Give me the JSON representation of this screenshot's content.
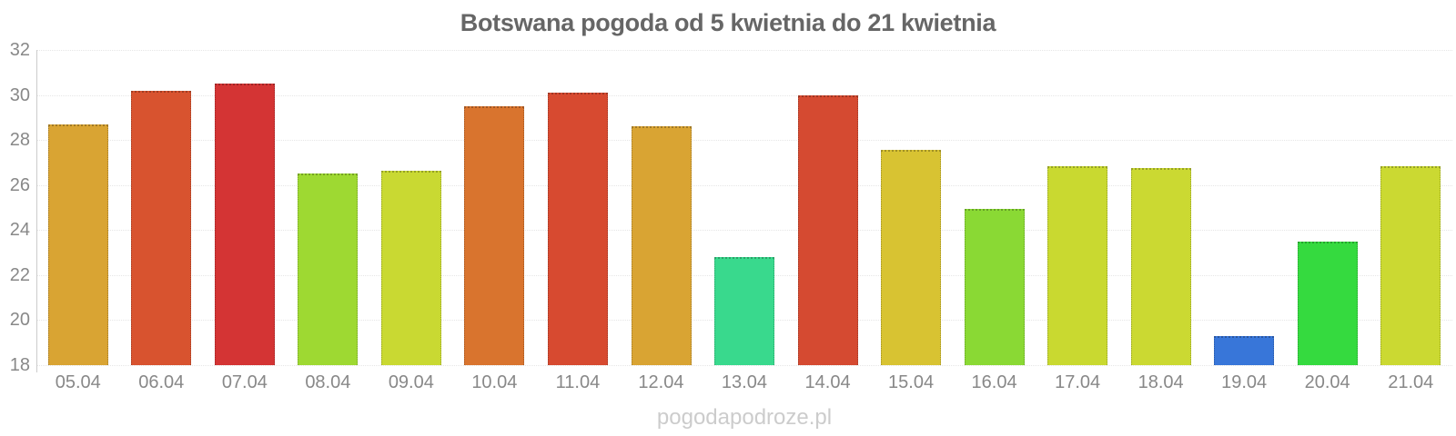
{
  "watermark": "pogodapodroze.pl",
  "colors": {
    "background": "#ffffff",
    "title": "#666666",
    "axis_label": "#888888",
    "axis_line": "#cccccc",
    "gridline": "#e6e6e6",
    "watermark": "#cccccc"
  },
  "chart_data": {
    "type": "bar",
    "title": "Botswana pogoda od 5 kwietnia do 21 kwietnia",
    "xlabel": "",
    "ylabel": "",
    "ylim": [
      18,
      32
    ],
    "yticks": [
      18,
      20,
      22,
      24,
      26,
      28,
      30,
      32
    ],
    "grid": true,
    "legend": false,
    "categories": [
      "05.04",
      "06.04",
      "07.04",
      "08.04",
      "09.04",
      "10.04",
      "11.04",
      "12.04",
      "13.04",
      "14.04",
      "15.04",
      "16.04",
      "17.04",
      "18.04",
      "19.04",
      "20.04",
      "21.04"
    ],
    "values": [
      28.7,
      30.2,
      30.5,
      26.5,
      26.65,
      29.5,
      30.1,
      28.6,
      22.8,
      30.0,
      27.55,
      24.95,
      26.85,
      26.75,
      19.3,
      23.5,
      26.85
    ],
    "bar_colors": [
      "#d9a433",
      "#d8532f",
      "#d43434",
      "#9ed932",
      "#c9d932",
      "#d9742e",
      "#d74a30",
      "#d9a433",
      "#39d98d",
      "#d54a31",
      "#d8c332",
      "#8ad934",
      "#c9d930",
      "#cbd932",
      "#3876d9",
      "#35da3f",
      "#cbd932"
    ]
  }
}
